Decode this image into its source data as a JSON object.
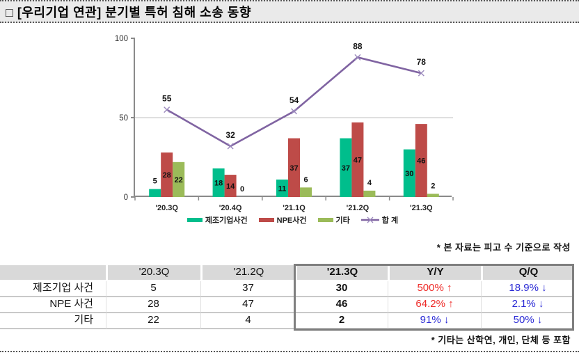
{
  "page": {
    "title": "□ [우리기업 연관] 분기별 특허 침해 소송 동향"
  },
  "chart_data": {
    "type": "bar",
    "title": "",
    "categories": [
      "'20.3Q",
      "'20.4Q",
      "'21.1Q",
      "'21.2Q",
      "'21.3Q"
    ],
    "series": [
      {
        "name": "제조기업사건",
        "kind": "bar",
        "color": "#00BE8C",
        "values": [
          5,
          18,
          11,
          37,
          30
        ]
      },
      {
        "name": "NPE사건",
        "kind": "bar",
        "color": "#BE4B48",
        "values": [
          28,
          14,
          37,
          47,
          46
        ]
      },
      {
        "name": "기타",
        "kind": "bar",
        "color": "#9BBB59",
        "values": [
          22,
          0,
          6,
          4,
          2
        ]
      },
      {
        "name": "합 계",
        "kind": "line",
        "color": "#8064A2",
        "values": [
          55,
          32,
          54,
          88,
          78
        ]
      }
    ],
    "xlabel": "",
    "ylabel": "",
    "ylim": [
      0,
      100
    ],
    "yticks": [
      0,
      50,
      100
    ],
    "gridlines": [
      50
    ],
    "legend_position": "bottom",
    "data_labels": true
  },
  "notes": {
    "chart_note": "* 본 자료는 피고 수 기준으로 작성",
    "table_note": "* 기타는 산학연, 개인, 단체 등 포함"
  },
  "table": {
    "columns": [
      "",
      "'20.3Q",
      "'21.2Q",
      "'21.3Q",
      "Y/Y",
      "Q/Q"
    ],
    "highlight_from_column": "'21.3Q",
    "rows": [
      {
        "label": "제조기업 사건",
        "q20_3": "5",
        "q21_2": "37",
        "q21_3": "30",
        "yy": {
          "text": "500% ↑",
          "dir": "up"
        },
        "qq": {
          "text": "18.9% ↓",
          "dir": "down"
        }
      },
      {
        "label": "NPE 사건",
        "q20_3": "28",
        "q21_2": "47",
        "q21_3": "46",
        "yy": {
          "text": "64.2% ↑",
          "dir": "up"
        },
        "qq": {
          "text": "2.1% ↓",
          "dir": "down"
        }
      },
      {
        "label": "기타",
        "q20_3": "22",
        "q21_2": "4",
        "q21_3": "2",
        "yy": {
          "text": "91% ↓",
          "dir": "down"
        },
        "qq": {
          "text": "50% ↓",
          "dir": "down"
        }
      }
    ],
    "trend_colors": {
      "up": "#EE2B28",
      "down": "#2A2AD5"
    }
  },
  "style": {
    "grid_color": "#BFBFBF",
    "axis_color": "#8a8a8a",
    "header_bg": "#D9D9D9"
  }
}
